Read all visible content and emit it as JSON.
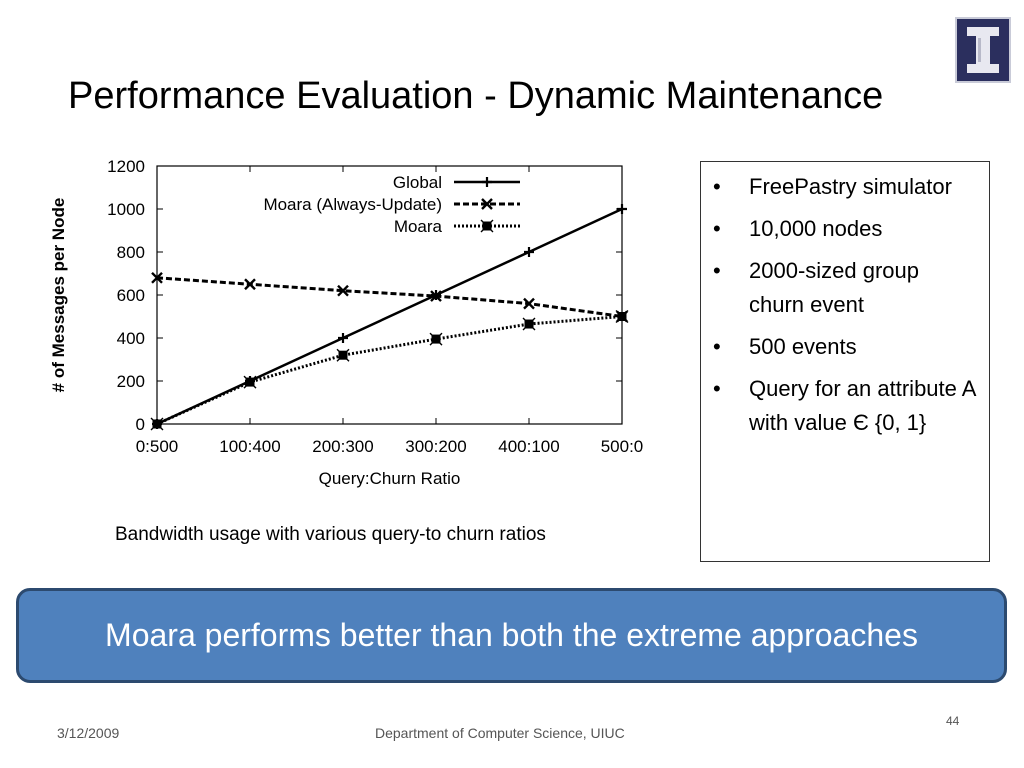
{
  "slide": {
    "title": "Performance Evaluation - Dynamic Maintenance",
    "caption": "Bandwidth usage with various query-to churn ratios",
    "bullets": [
      "FreePastry simulator",
      "10,000 nodes",
      "2000-sized group churn event",
      "500 events",
      "Query for an attribute A with value Є {0, 1}"
    ],
    "banner": "Moara performs better than both the extreme approaches",
    "footer": {
      "date": "3/12/2009",
      "department": "Department of Computer Science, UIUC",
      "page_number": "44"
    },
    "logo": {
      "icon": "illinois-block-i-icon",
      "colors": {
        "background": "#2b2f5e",
        "letter": "#e8e8f0"
      }
    },
    "colors": {
      "banner": "#4f81bd",
      "banner_border": "#2c4a6f",
      "banner_text": "#ffffff"
    }
  },
  "chart_data": {
    "type": "line",
    "xlabel": "Query:Churn Ratio",
    "ylabel": "# of Messages per Node",
    "categories": [
      "0:500",
      "100:400",
      "200:300",
      "300:200",
      "400:100",
      "500:0"
    ],
    "ylim": [
      0,
      1200
    ],
    "yticks": [
      0,
      200,
      400,
      600,
      800,
      1000,
      1200
    ],
    "grid": false,
    "legend_position": "top-right",
    "series": [
      {
        "name": "Global",
        "marker": "plus",
        "dash": "solid",
        "values": [
          0,
          200,
          400,
          600,
          800,
          1000
        ]
      },
      {
        "name": "Moara (Always-Update)",
        "marker": "cross",
        "dash": "dashed",
        "values": [
          680,
          650,
          620,
          595,
          560,
          500
        ]
      },
      {
        "name": "Moara",
        "marker": "boxcross",
        "dash": "dotted",
        "values": [
          0,
          195,
          320,
          395,
          465,
          500
        ]
      }
    ]
  }
}
